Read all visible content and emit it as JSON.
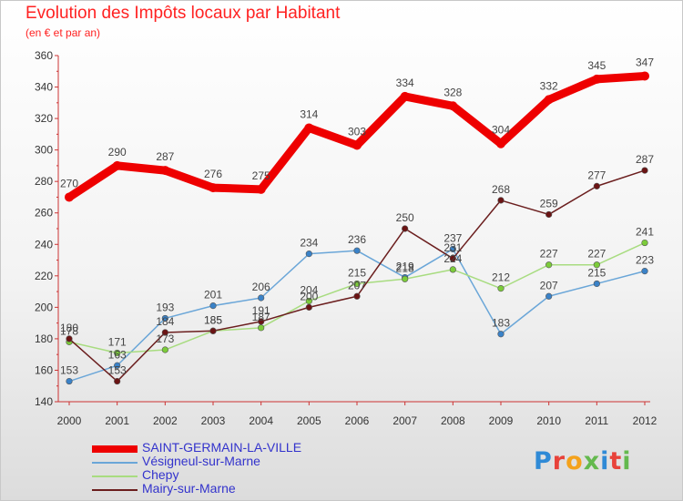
{
  "title": "Evolution des Impôts locaux par Habitant",
  "subtitle": "(en € et par an)",
  "logo_text": "Proxiti",
  "logo_colors": [
    "#2f8ad6",
    "#e8423a",
    "#f4a21c",
    "#64b94e",
    "#2f8ad6",
    "#e8423a",
    "#64b94e"
  ],
  "chart_data": {
    "type": "line",
    "title": "Evolution des Impôts locaux par Habitant",
    "subtitle": "(en € et par an)",
    "xlabel": "",
    "ylabel": "",
    "x": [
      "2000",
      "2001",
      "2002",
      "2003",
      "2004",
      "2005",
      "2006",
      "2007",
      "2008",
      "2009",
      "2010",
      "2011",
      "2012"
    ],
    "ylim": [
      140,
      360
    ],
    "yticks": [
      140,
      160,
      180,
      200,
      220,
      240,
      260,
      280,
      300,
      320,
      340,
      360
    ],
    "series": [
      {
        "name": "SAINT-GERMAIN-LA-VILLE",
        "color": "#ee0000",
        "marker": "#ee0000",
        "bold": true,
        "values": [
          270,
          290,
          287,
          276,
          275,
          314,
          303,
          334,
          328,
          304,
          332,
          345,
          347
        ]
      },
      {
        "name": "Vésigneul-sur-Marne",
        "color": "#6aa6d8",
        "marker": "#3a82c8",
        "bold": false,
        "values": [
          153,
          163,
          193,
          201,
          206,
          234,
          236,
          219,
          237,
          183,
          207,
          215,
          223
        ]
      },
      {
        "name": "Chepy",
        "color": "#a8dc80",
        "marker": "#7ccc3a",
        "bold": false,
        "values": [
          178,
          171,
          173,
          185,
          187,
          204,
          215,
          218,
          224,
          212,
          227,
          227,
          241
        ]
      },
      {
        "name": "Mairy-sur-Marne",
        "color": "#6b1e1e",
        "marker": "#6b1414",
        "bold": false,
        "values": [
          180,
          153,
          184,
          185,
          191,
          200,
          207,
          250,
          231,
          268,
          259,
          277,
          287
        ]
      }
    ],
    "legend_position": "bottom-left",
    "grid": false
  }
}
